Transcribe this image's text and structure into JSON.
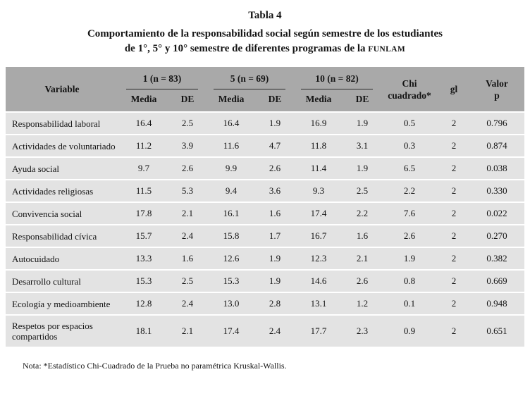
{
  "colors": {
    "header_bg": "#a9a9a9",
    "row_bg": "#e3e3e3"
  },
  "caption": {
    "number": "Tabla 4",
    "line1": "Comportamiento de la responsabilidad social según semestre de los estudiantes",
    "line2_prefix": "de 1°, 5° y 10° semestre de diferentes programas de la ",
    "line2_funlam": "FUNLAM"
  },
  "table": {
    "variable_header": "Variable",
    "groups": [
      "1 (n = 83)",
      "5 (n = 69)",
      "10 (n = 82)"
    ],
    "sub_headers": [
      "Media",
      "DE",
      "Media",
      "DE",
      "Media",
      "DE"
    ],
    "chi_header": "Chi\ncuadrado*",
    "gl_header": "gl",
    "p_header": "Valor\np",
    "rows": [
      {
        "variable": "Responsabilidad laboral",
        "values": [
          "16.4",
          "2.5",
          "16.4",
          "1.9",
          "16.9",
          "1.9",
          "0.5",
          "2",
          "0.796"
        ]
      },
      {
        "variable": "Actividades de voluntariado",
        "values": [
          "11.2",
          "3.9",
          "11.6",
          "4.7",
          "11.8",
          "3.1",
          "0.3",
          "2",
          "0.874"
        ]
      },
      {
        "variable": "Ayuda social",
        "values": [
          "9.7",
          "2.6",
          "9.9",
          "2.6",
          "11.4",
          "1.9",
          "6.5",
          "2",
          "0.038"
        ]
      },
      {
        "variable": "Actividades religiosas",
        "values": [
          "11.5",
          "5.3",
          "9.4",
          "3.6",
          "9.3",
          "2.5",
          "2.2",
          "2",
          "0.330"
        ]
      },
      {
        "variable": "Convivencia social",
        "values": [
          "17.8",
          "2.1",
          "16.1",
          "1.6",
          "17.4",
          "2.2",
          "7.6",
          "2",
          "0.022"
        ]
      },
      {
        "variable": "Responsabilidad cívica",
        "values": [
          "15.7",
          "2.4",
          "15.8",
          "1.7",
          "16.7",
          "1.6",
          "2.6",
          "2",
          "0.270"
        ]
      },
      {
        "variable": "Autocuidado",
        "values": [
          "13.3",
          "1.6",
          "12.6",
          "1.9",
          "12.3",
          "2.1",
          "1.9",
          "2",
          "0.382"
        ]
      },
      {
        "variable": "Desarrollo cultural",
        "values": [
          "15.3",
          "2.5",
          "15.3",
          "1.9",
          "14.6",
          "2.6",
          "0.8",
          "2",
          "0.669"
        ]
      },
      {
        "variable": "Ecología y medioambiente",
        "values": [
          "12.8",
          "2.4",
          "13.0",
          "2.8",
          "13.1",
          "1.2",
          "0.1",
          "2",
          "0.948"
        ]
      },
      {
        "variable": "Respetos por espacios compartidos",
        "values": [
          "18.1",
          "2.1",
          "17.4",
          "2.4",
          "17.7",
          "2.3",
          "0.9",
          "2",
          "0.651"
        ]
      }
    ]
  },
  "note": "Nota: *Estadístico Chi-Cuadrado de la Prueba no paramétrica Kruskal-Wallis."
}
